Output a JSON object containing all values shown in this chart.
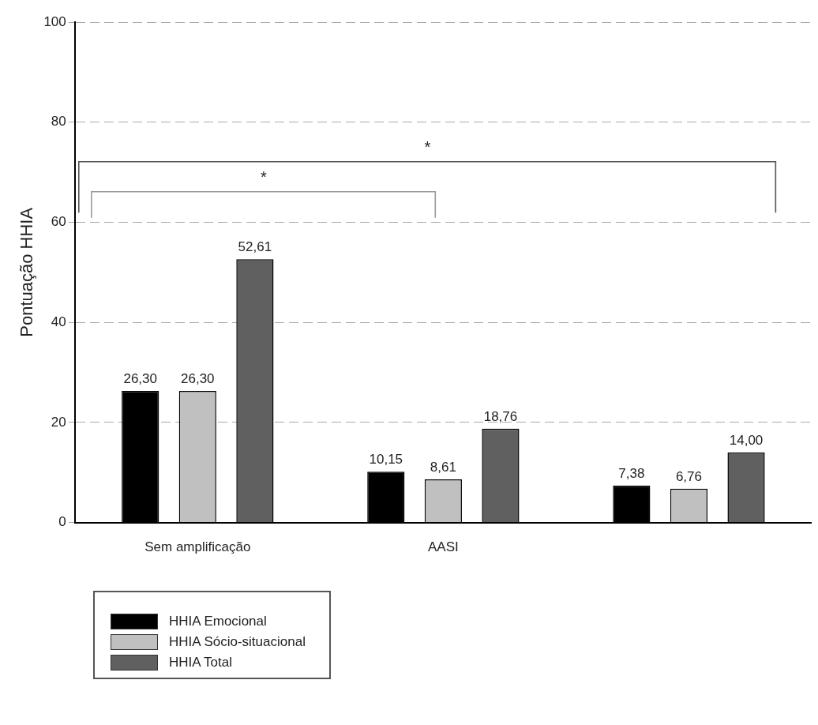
{
  "chart_data": {
    "type": "bar",
    "ylabel": "Pontuação HHIA",
    "categories": [
      "Sem amplificação",
      "AASI",
      null
    ],
    "series": [
      {
        "name": "HHIA Emocional",
        "color": "#000000",
        "values": [
          26.3,
          10.15,
          7.38
        ],
        "value_labels": [
          "26,30",
          "10,15",
          "7,38"
        ]
      },
      {
        "name": "HHIA Sócio-situacional",
        "color": "#c0c0c0",
        "values": [
          26.3,
          8.61,
          6.76
        ],
        "value_labels": [
          "26,30",
          "8,61",
          "6,76"
        ]
      },
      {
        "name": "HHIA Total",
        "color": "#606060",
        "values": [
          52.61,
          18.76,
          14.0
        ],
        "value_labels": [
          "52,61",
          "18,76",
          "14,00"
        ]
      }
    ],
    "ylim": [
      0,
      100
    ],
    "yticks": [
      0,
      20,
      40,
      60,
      80,
      100
    ],
    "grid": "y",
    "legend": "bottom left",
    "annotations": [
      "*",
      "*"
    ]
  }
}
